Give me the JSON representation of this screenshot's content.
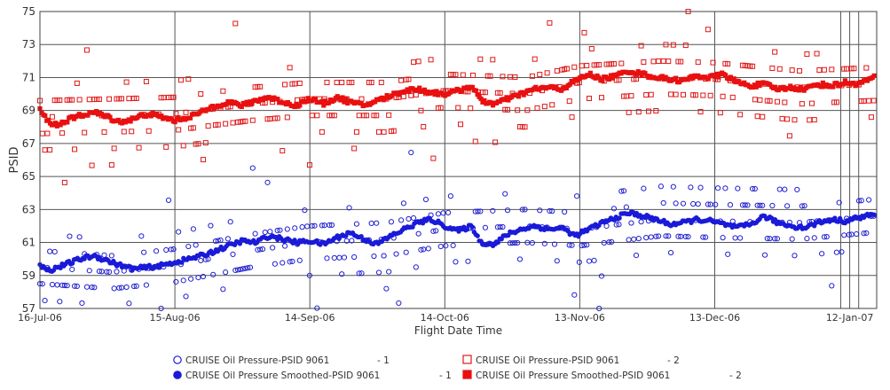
{
  "chart_data": {
    "type": "scatter",
    "title": "",
    "xlabel": "Flight Date Time",
    "ylabel": "PSID",
    "x_range": [
      "2006-07-16",
      "2007-01-18"
    ],
    "ylim": [
      57,
      75
    ],
    "yticks": [
      57,
      59,
      61,
      63,
      65,
      67,
      69,
      71,
      73,
      75
    ],
    "xticks": [
      {
        "date": "2006-07-16",
        "label": "16-Jul-06"
      },
      {
        "date": "2006-08-15",
        "label": "15-Aug-06"
      },
      {
        "date": "2006-09-14",
        "label": "14-Sep-06"
      },
      {
        "date": "2006-10-14",
        "label": "14-Oct-06"
      },
      {
        "date": "2006-11-13",
        "label": "13-Nov-06"
      },
      {
        "date": "2006-12-13",
        "label": "13-Dec-06"
      },
      {
        "date": "2007-01-12",
        "label": "12-Jan-07"
      }
    ],
    "extra_gridlines_x": [
      "2007-01-10",
      "2007-01-14"
    ],
    "grid": true,
    "legend_position": "bottom",
    "series": [
      {
        "name": "CRUISE Oil Pressure-PSID 9061",
        "engine": "1",
        "color": "#2020d0",
        "marker": "circle-open",
        "mean_points": [
          [
            "2006-07-16",
            59.5
          ],
          [
            "2006-08-01",
            59.2
          ],
          [
            "2006-08-15",
            59.6
          ],
          [
            "2006-09-01",
            60.5
          ],
          [
            "2006-09-14",
            61.0
          ],
          [
            "2006-10-01",
            61.2
          ],
          [
            "2006-10-14",
            61.8
          ],
          [
            "2006-11-01",
            62.0
          ],
          [
            "2006-11-13",
            61.8
          ],
          [
            "2006-12-01",
            62.4
          ],
          [
            "2006-12-13",
            62.3
          ],
          [
            "2007-01-01",
            62.2
          ],
          [
            "2007-01-17",
            62.6
          ]
        ],
        "spread": 1.8
      },
      {
        "name": "CRUISE Oil Pressure-PSID 9061",
        "engine": "2",
        "color": "#e01818",
        "marker": "square-open",
        "mean_points": [
          [
            "2006-07-16",
            68.6
          ],
          [
            "2006-08-01",
            68.7
          ],
          [
            "2006-08-15",
            68.8
          ],
          [
            "2006-09-01",
            69.4
          ],
          [
            "2006-09-14",
            69.7
          ],
          [
            "2006-10-01",
            69.7
          ],
          [
            "2006-10-14",
            70.2
          ],
          [
            "2006-11-01",
            70.0
          ],
          [
            "2006-11-13",
            70.7
          ],
          [
            "2006-12-01",
            71.0
          ],
          [
            "2006-12-13",
            70.9
          ],
          [
            "2007-01-01",
            70.4
          ],
          [
            "2007-01-17",
            70.6
          ]
        ],
        "spread": 1.8
      },
      {
        "name": "CRUISE Oil Pressure Smoothed-PSID 9061",
        "engine": "1",
        "color": "#1a1ad8",
        "marker": "circle-filled",
        "points": [
          [
            "2006-07-16",
            59.6
          ],
          [
            "2006-07-18",
            59.3
          ],
          [
            "2006-07-20",
            59.5
          ],
          [
            "2006-07-22",
            59.7
          ],
          [
            "2006-07-25",
            60.0
          ],
          [
            "2006-07-28",
            60.2
          ],
          [
            "2006-07-31",
            59.9
          ],
          [
            "2006-08-03",
            59.6
          ],
          [
            "2006-08-06",
            59.4
          ],
          [
            "2006-08-09",
            59.5
          ],
          [
            "2006-08-12",
            59.6
          ],
          [
            "2006-08-15",
            59.8
          ],
          [
            "2006-08-18",
            60.0
          ],
          [
            "2006-08-21",
            60.2
          ],
          [
            "2006-08-24",
            60.5
          ],
          [
            "2006-08-27",
            60.8
          ],
          [
            "2006-08-30",
            61.1
          ],
          [
            "2006-09-02",
            61.0
          ],
          [
            "2006-09-05",
            61.4
          ],
          [
            "2006-09-08",
            61.2
          ],
          [
            "2006-09-11",
            61.0
          ],
          [
            "2006-09-14",
            61.1
          ],
          [
            "2006-09-17",
            60.9
          ],
          [
            "2006-09-20",
            61.3
          ],
          [
            "2006-09-23",
            61.6
          ],
          [
            "2006-09-26",
            61.2
          ],
          [
            "2006-09-29",
            60.9
          ],
          [
            "2006-10-02",
            61.4
          ],
          [
            "2006-10-05",
            61.8
          ],
          [
            "2006-10-08",
            62.2
          ],
          [
            "2006-10-11",
            62.4
          ],
          [
            "2006-10-14",
            62.0
          ],
          [
            "2006-10-17",
            61.7
          ],
          [
            "2006-10-20",
            62.0
          ],
          [
            "2006-10-22",
            61.0
          ],
          [
            "2006-10-25",
            60.9
          ],
          [
            "2006-10-28",
            61.5
          ],
          [
            "2006-10-31",
            61.8
          ],
          [
            "2006-11-03",
            62.0
          ],
          [
            "2006-11-06",
            61.8
          ],
          [
            "2006-11-09",
            61.9
          ],
          [
            "2006-11-12",
            61.4
          ],
          [
            "2006-11-15",
            61.8
          ],
          [
            "2006-11-18",
            62.2
          ],
          [
            "2006-11-21",
            62.5
          ],
          [
            "2006-11-24",
            62.8
          ],
          [
            "2006-11-27",
            62.6
          ],
          [
            "2006-11-30",
            62.4
          ],
          [
            "2006-12-03",
            62.1
          ],
          [
            "2006-12-06",
            62.2
          ],
          [
            "2006-12-09",
            62.4
          ],
          [
            "2006-12-12",
            62.3
          ],
          [
            "2006-12-15",
            62.1
          ],
          [
            "2006-12-18",
            61.9
          ],
          [
            "2006-12-21",
            62.1
          ],
          [
            "2006-12-24",
            62.6
          ],
          [
            "2006-12-27",
            62.2
          ],
          [
            "2006-12-30",
            62.0
          ],
          [
            "2007-01-02",
            61.9
          ],
          [
            "2007-01-05",
            62.2
          ],
          [
            "2007-01-08",
            62.4
          ],
          [
            "2007-01-11",
            62.3
          ],
          [
            "2007-01-14",
            62.5
          ],
          [
            "2007-01-17",
            62.7
          ]
        ]
      },
      {
        "name": "CRUISE Oil Pressure Smoothed-PSID 9061",
        "engine": "2",
        "color": "#e81010",
        "marker": "square-filled",
        "points": [
          [
            "2006-07-16",
            69.0
          ],
          [
            "2006-07-18",
            68.3
          ],
          [
            "2006-07-20",
            68.1
          ],
          [
            "2006-07-22",
            68.4
          ],
          [
            "2006-07-25",
            68.7
          ],
          [
            "2006-07-28",
            68.9
          ],
          [
            "2006-07-31",
            68.6
          ],
          [
            "2006-08-03",
            68.3
          ],
          [
            "2006-08-06",
            68.5
          ],
          [
            "2006-08-09",
            68.8
          ],
          [
            "2006-08-12",
            68.6
          ],
          [
            "2006-08-15",
            68.4
          ],
          [
            "2006-08-18",
            68.6
          ],
          [
            "2006-08-21",
            68.9
          ],
          [
            "2006-08-24",
            69.3
          ],
          [
            "2006-08-27",
            69.5
          ],
          [
            "2006-08-30",
            69.3
          ],
          [
            "2006-09-02",
            69.6
          ],
          [
            "2006-09-05",
            69.8
          ],
          [
            "2006-09-08",
            69.5
          ],
          [
            "2006-09-11",
            69.3
          ],
          [
            "2006-09-14",
            69.7
          ],
          [
            "2006-09-17",
            69.4
          ],
          [
            "2006-09-20",
            69.8
          ],
          [
            "2006-09-23",
            69.5
          ],
          [
            "2006-09-26",
            69.3
          ],
          [
            "2006-09-29",
            69.6
          ],
          [
            "2006-10-02",
            69.9
          ],
          [
            "2006-10-05",
            70.2
          ],
          [
            "2006-10-08",
            70.3
          ],
          [
            "2006-10-11",
            70.1
          ],
          [
            "2006-10-14",
            70.0
          ],
          [
            "2006-10-17",
            70.2
          ],
          [
            "2006-10-20",
            70.5
          ],
          [
            "2006-10-22",
            69.6
          ],
          [
            "2006-10-25",
            69.4
          ],
          [
            "2006-10-28",
            69.7
          ],
          [
            "2006-10-31",
            70.0
          ],
          [
            "2006-11-03",
            70.3
          ],
          [
            "2006-11-06",
            70.4
          ],
          [
            "2006-11-09",
            70.3
          ],
          [
            "2006-11-12",
            70.8
          ],
          [
            "2006-11-15",
            71.2
          ],
          [
            "2006-11-18",
            70.9
          ],
          [
            "2006-11-21",
            71.1
          ],
          [
            "2006-11-24",
            71.4
          ],
          [
            "2006-11-27",
            71.2
          ],
          [
            "2006-11-30",
            71.0
          ],
          [
            "2006-12-03",
            70.9
          ],
          [
            "2006-12-06",
            70.8
          ],
          [
            "2006-12-09",
            71.1
          ],
          [
            "2006-12-12",
            71.0
          ],
          [
            "2006-12-15",
            71.2
          ],
          [
            "2006-12-18",
            70.7
          ],
          [
            "2006-12-21",
            70.5
          ],
          [
            "2006-12-24",
            70.6
          ],
          [
            "2006-12-27",
            70.3
          ],
          [
            "2006-12-30",
            70.4
          ],
          [
            "2007-01-02",
            70.3
          ],
          [
            "2007-01-05",
            70.6
          ],
          [
            "2007-01-08",
            70.5
          ],
          [
            "2007-01-11",
            70.7
          ],
          [
            "2007-01-14",
            70.6
          ],
          [
            "2007-01-17",
            71.0
          ]
        ]
      }
    ],
    "legend": [
      {
        "label": "CRUISE Oil Pressure-PSID 9061",
        "suffix": "- 1",
        "marker": "circle-open",
        "color": "#2020d0"
      },
      {
        "label": "CRUISE Oil Pressure-PSID 9061",
        "suffix": "- 2",
        "marker": "square-open",
        "color": "#e01818"
      },
      {
        "label": "CRUISE Oil Pressure Smoothed-PSID 9061",
        "suffix": "- 1",
        "marker": "circle-filled",
        "color": "#1a1ad8"
      },
      {
        "label": "CRUISE Oil Pressure Smoothed-PSID 9061",
        "suffix": "- 2",
        "marker": "square-filled",
        "color": "#e81010"
      }
    ]
  }
}
